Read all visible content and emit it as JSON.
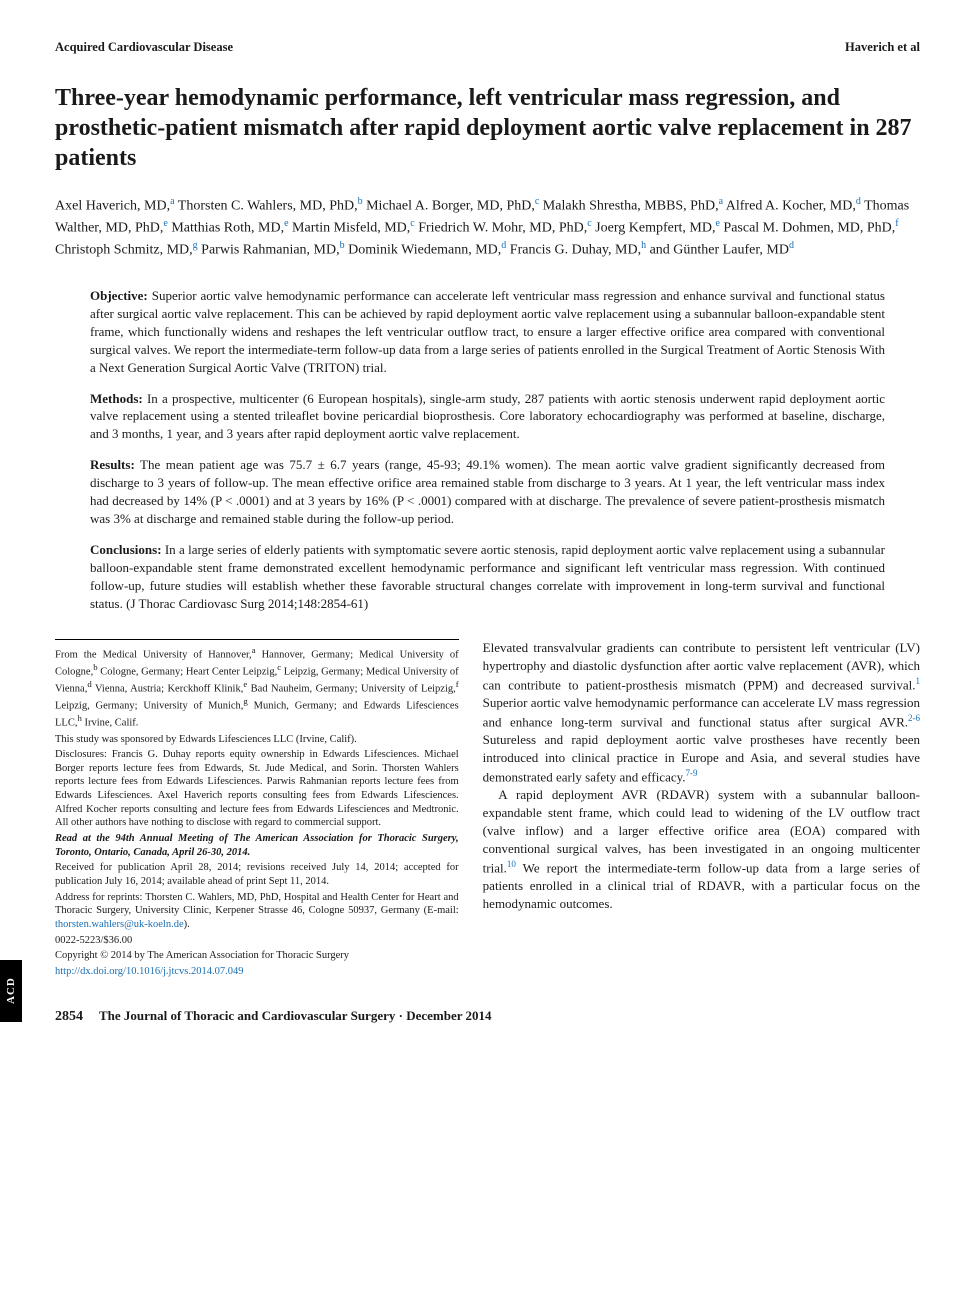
{
  "header": {
    "section_left": "Acquired Cardiovascular Disease",
    "section_right": "Haverich et al"
  },
  "title": "Three-year hemodynamic performance, left ventricular mass regression, and prosthetic-patient mismatch after rapid deployment aortic valve replacement in 287 patients",
  "authors_html": "Axel Haverich, MD,<sup>a</sup> Thorsten C. Wahlers, MD, PhD,<sup>b</sup> Michael A. Borger, MD, PhD,<sup>c</sup> Malakh Shrestha, MBBS, PhD,<sup>a</sup> Alfred A. Kocher, MD,<sup>d</sup> Thomas Walther, MD, PhD,<sup>e</sup> Matthias Roth, MD,<sup>e</sup> Martin Misfeld, MD,<sup>c</sup> Friedrich W. Mohr, MD, PhD,<sup>c</sup> Joerg Kempfert, MD,<sup>e</sup> Pascal M. Dohmen, MD, PhD,<sup>f</sup> Christoph Schmitz, MD,<sup>g</sup> Parwis Rahmanian, MD,<sup>b</sup> Dominik Wiedemann, MD,<sup>d</sup> Francis G. Duhay, MD,<sup>h</sup> and Günther Laufer, MD<sup>d</sup>",
  "abstract": {
    "objective": {
      "label": "Objective:",
      "text": " Superior aortic valve hemodynamic performance can accelerate left ventricular mass regression and enhance survival and functional status after surgical aortic valve replacement. This can be achieved by rapid deployment aortic valve replacement using a subannular balloon-expandable stent frame, which functionally widens and reshapes the left ventricular outflow tract, to ensure a larger effective orifice area compared with conventional surgical valves. We report the intermediate-term follow-up data from a large series of patients enrolled in the Surgical Treatment of Aortic Stenosis With a Next Generation Surgical Aortic Valve (TRITON) trial."
    },
    "methods": {
      "label": "Methods:",
      "text": " In a prospective, multicenter (6 European hospitals), single-arm study, 287 patients with aortic stenosis underwent rapid deployment aortic valve replacement using a stented trileaflet bovine pericardial bioprosthesis. Core laboratory echocardiography was performed at baseline, discharge, and 3 months, 1 year, and 3 years after rapid deployment aortic valve replacement."
    },
    "results": {
      "label": "Results:",
      "text": " The mean patient age was 75.7 ± 6.7 years (range, 45-93; 49.1% women). The mean aortic valve gradient significantly decreased from discharge to 3 years of follow-up. The mean effective orifice area remained stable from discharge to 3 years. At 1 year, the left ventricular mass index had decreased by 14% (P < .0001) and at 3 years by 16% (P < .0001) compared with at discharge. The prevalence of severe patient-prosthesis mismatch was 3% at discharge and remained stable during the follow-up period."
    },
    "conclusions": {
      "label": "Conclusions:",
      "text": " In a large series of elderly patients with symptomatic severe aortic stenosis, rapid deployment aortic valve replacement using a subannular balloon-expandable stent frame demonstrated excellent hemodynamic performance and significant left ventricular mass regression. With continued follow-up, future studies will establish whether these favorable structural changes correlate with improvement in long-term survival and functional status. (J Thorac Cardiovasc Surg 2014;148:2854-61)"
    }
  },
  "footnotes": {
    "affiliations_html": "From the Medical University of Hannover,<sup>a</sup> Hannover, Germany; Medical University of Cologne,<sup>b</sup> Cologne, Germany; Heart Center Leipzig,<sup>c</sup> Leipzig, Germany; Medical University of Vienna,<sup>d</sup> Vienna, Austria; Kerckhoff Klinik,<sup>e</sup> Bad Nauheim, Germany; University of Leipzig,<sup>f</sup> Leipzig, Germany; University of Munich,<sup>g</sup> Munich, Germany; and Edwards Lifesciences LLC,<sup>h</sup> Irvine, Calif.",
    "sponsor": "This study was sponsored by Edwards Lifesciences LLC (Irvine, Calif).",
    "disclosures": "Disclosures: Francis G. Duhay reports equity ownership in Edwards Lifesciences. Michael Borger reports lecture fees from Edwards, St. Jude Medical, and Sorin. Thorsten Wahlers reports lecture fees from Edwards Lifesciences. Parwis Rahmanian reports lecture fees from Edwards Lifesciences. Axel Haverich reports consulting fees from Edwards Lifesciences. Alfred Kocher reports consulting and lecture fees from Edwards Lifesciences and Medtronic. All other authors have nothing to disclose with regard to commercial support.",
    "read_at": "Read at the 94th Annual Meeting of The American Association for Thoracic Surgery, Toronto, Ontario, Canada, April 26-30, 2014.",
    "received": "Received for publication April 28, 2014; revisions received July 14, 2014; accepted for publication July 16, 2014; available ahead of print Sept 11, 2014.",
    "reprints": "Address for reprints: Thorsten C. Wahlers, MD, PhD, Hospital and Health Center for Heart and Thoracic Surgery, University Clinic, Kerpener Strasse 46, Cologne 50937, Germany (E-mail: ",
    "reprints_email": "thorsten.wahlers@uk-koeln.de",
    "reprints_tail": ").",
    "issn": "0022-5223/$36.00",
    "copyright": "Copyright © 2014 by The American Association for Thoracic Surgery",
    "doi": "http://dx.doi.org/10.1016/j.jtcvs.2014.07.049"
  },
  "body": {
    "para1_html": "Elevated transvalvular gradients can contribute to persistent left ventricular (LV) hypertrophy and diastolic dysfunction after aortic valve replacement (AVR), which can contribute to patient-prosthesis mismatch (PPM) and decreased survival.<sup>1</sup> Superior aortic valve hemodynamic performance can accelerate LV mass regression and enhance long-term survival and functional status after surgical AVR.<sup>2-6</sup> Sutureless and rapid deployment aortic valve prostheses have recently been introduced into clinical practice in Europe and Asia, and several studies have demonstrated early safety and efficacy.<sup>7-9</sup>",
    "para2_html": "A rapid deployment AVR (RDAVR) system with a subannular balloon-expandable stent frame, which could lead to widening of the LV outflow tract (valve inflow) and a larger effective orifice area (EOA) compared with conventional surgical valves, has been investigated in an ongoing multicenter trial.<sup>10</sup> We report the intermediate-term follow-up data from a large series of patients enrolled in a clinical trial of RDAVR, with a particular focus on the hemodynamic outcomes."
  },
  "side_tab": "ACD",
  "footer": {
    "page_number": "2854",
    "journal_line": "The Journal of Thoracic and Cardiovascular Surgery · December 2014"
  },
  "colors": {
    "link": "#1a6fb3",
    "text": "#1a1a1a",
    "bg": "#ffffff",
    "tab_bg": "#000000",
    "tab_fg": "#ffffff"
  },
  "typography": {
    "title_pt": 24,
    "author_pt": 14,
    "abstract_pt": 13,
    "body_pt": 13,
    "footnote_pt": 10.5,
    "header_pt": 12.5
  }
}
